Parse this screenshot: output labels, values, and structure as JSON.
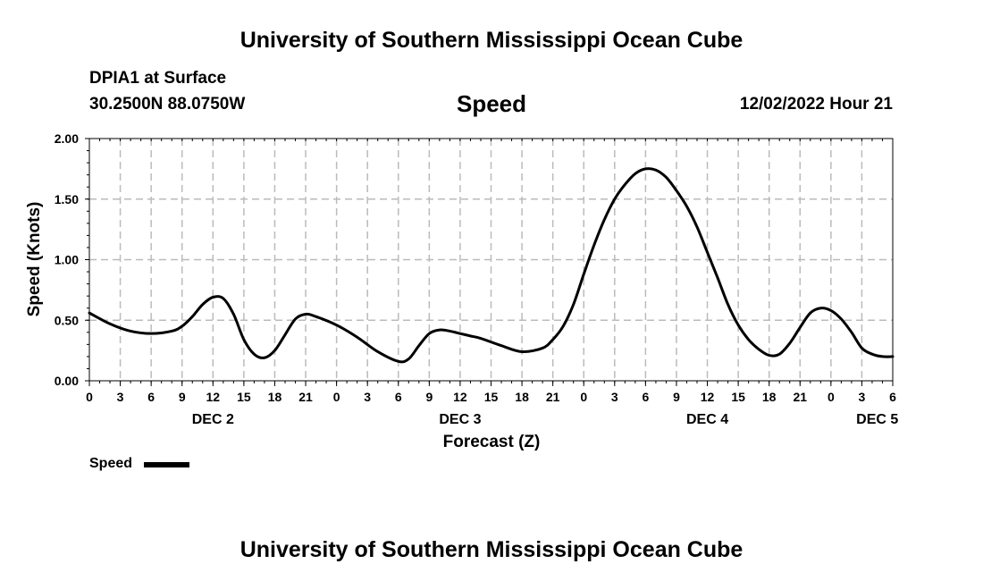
{
  "header": {
    "title": "University of Southern Mississippi Ocean Cube",
    "station": "DPIA1 at Surface",
    "coords": "30.2500N  88.0750W",
    "variable": "Speed",
    "datetime": "12/02/2022 Hour 21"
  },
  "footer": {
    "title": "University of Southern Mississippi Ocean Cube"
  },
  "legend": {
    "label": "Speed"
  },
  "colors": {
    "line": "#000000",
    "grid": "#bbbbbb"
  },
  "chart_data": {
    "type": "line",
    "title": "Speed",
    "xlabel": "Forecast (Z)",
    "ylabel": "Speed (Knots)",
    "ylim": [
      0,
      2
    ],
    "xlim": [
      0,
      78
    ],
    "x_unit": "hours since DEC 2 00Z",
    "y_ticks": [
      "0.00",
      "0.50",
      "1.00",
      "1.50",
      "2.00"
    ],
    "x_ticks": [
      "0",
      "3",
      "6",
      "9",
      "12",
      "15",
      "18",
      "21",
      "0",
      "3",
      "6",
      "9",
      "12",
      "15",
      "18",
      "21",
      "0",
      "3",
      "6",
      "9",
      "12",
      "15",
      "18",
      "21",
      "0",
      "3",
      "6"
    ],
    "date_labels": [
      {
        "label": "DEC 2",
        "hour": 12
      },
      {
        "label": "DEC 3",
        "hour": 36
      },
      {
        "label": "DEC 4",
        "hour": 60
      },
      {
        "label": "DEC 5",
        "hour": 76.5
      }
    ],
    "grid": true,
    "series": [
      {
        "name": "Speed",
        "x": [
          0,
          2,
          4,
          6,
          8,
          9,
          10,
          11,
          12,
          13,
          14,
          15,
          16,
          17,
          18,
          19,
          20,
          21,
          22,
          24,
          26,
          28,
          30,
          31,
          32,
          33,
          34,
          35,
          36,
          37,
          38,
          40,
          42,
          44,
          45,
          46,
          47,
          48,
          49,
          50,
          51,
          52,
          53,
          54,
          55,
          56,
          57,
          58,
          59,
          60,
          61,
          62,
          63,
          64,
          65,
          66,
          67,
          68,
          69,
          70,
          71,
          72,
          73,
          74,
          75,
          76,
          77,
          78
        ],
        "y": [
          0.56,
          0.47,
          0.41,
          0.39,
          0.41,
          0.45,
          0.53,
          0.63,
          0.69,
          0.68,
          0.55,
          0.34,
          0.22,
          0.19,
          0.25,
          0.38,
          0.51,
          0.55,
          0.53,
          0.46,
          0.36,
          0.24,
          0.16,
          0.18,
          0.29,
          0.39,
          0.42,
          0.41,
          0.39,
          0.37,
          0.35,
          0.29,
          0.24,
          0.27,
          0.34,
          0.45,
          0.63,
          0.88,
          1.12,
          1.33,
          1.5,
          1.62,
          1.71,
          1.75,
          1.74,
          1.68,
          1.57,
          1.44,
          1.27,
          1.06,
          0.85,
          0.63,
          0.46,
          0.34,
          0.26,
          0.21,
          0.22,
          0.31,
          0.44,
          0.56,
          0.6,
          0.58,
          0.51,
          0.4,
          0.27,
          0.22,
          0.2,
          0.2
        ]
      }
    ]
  }
}
